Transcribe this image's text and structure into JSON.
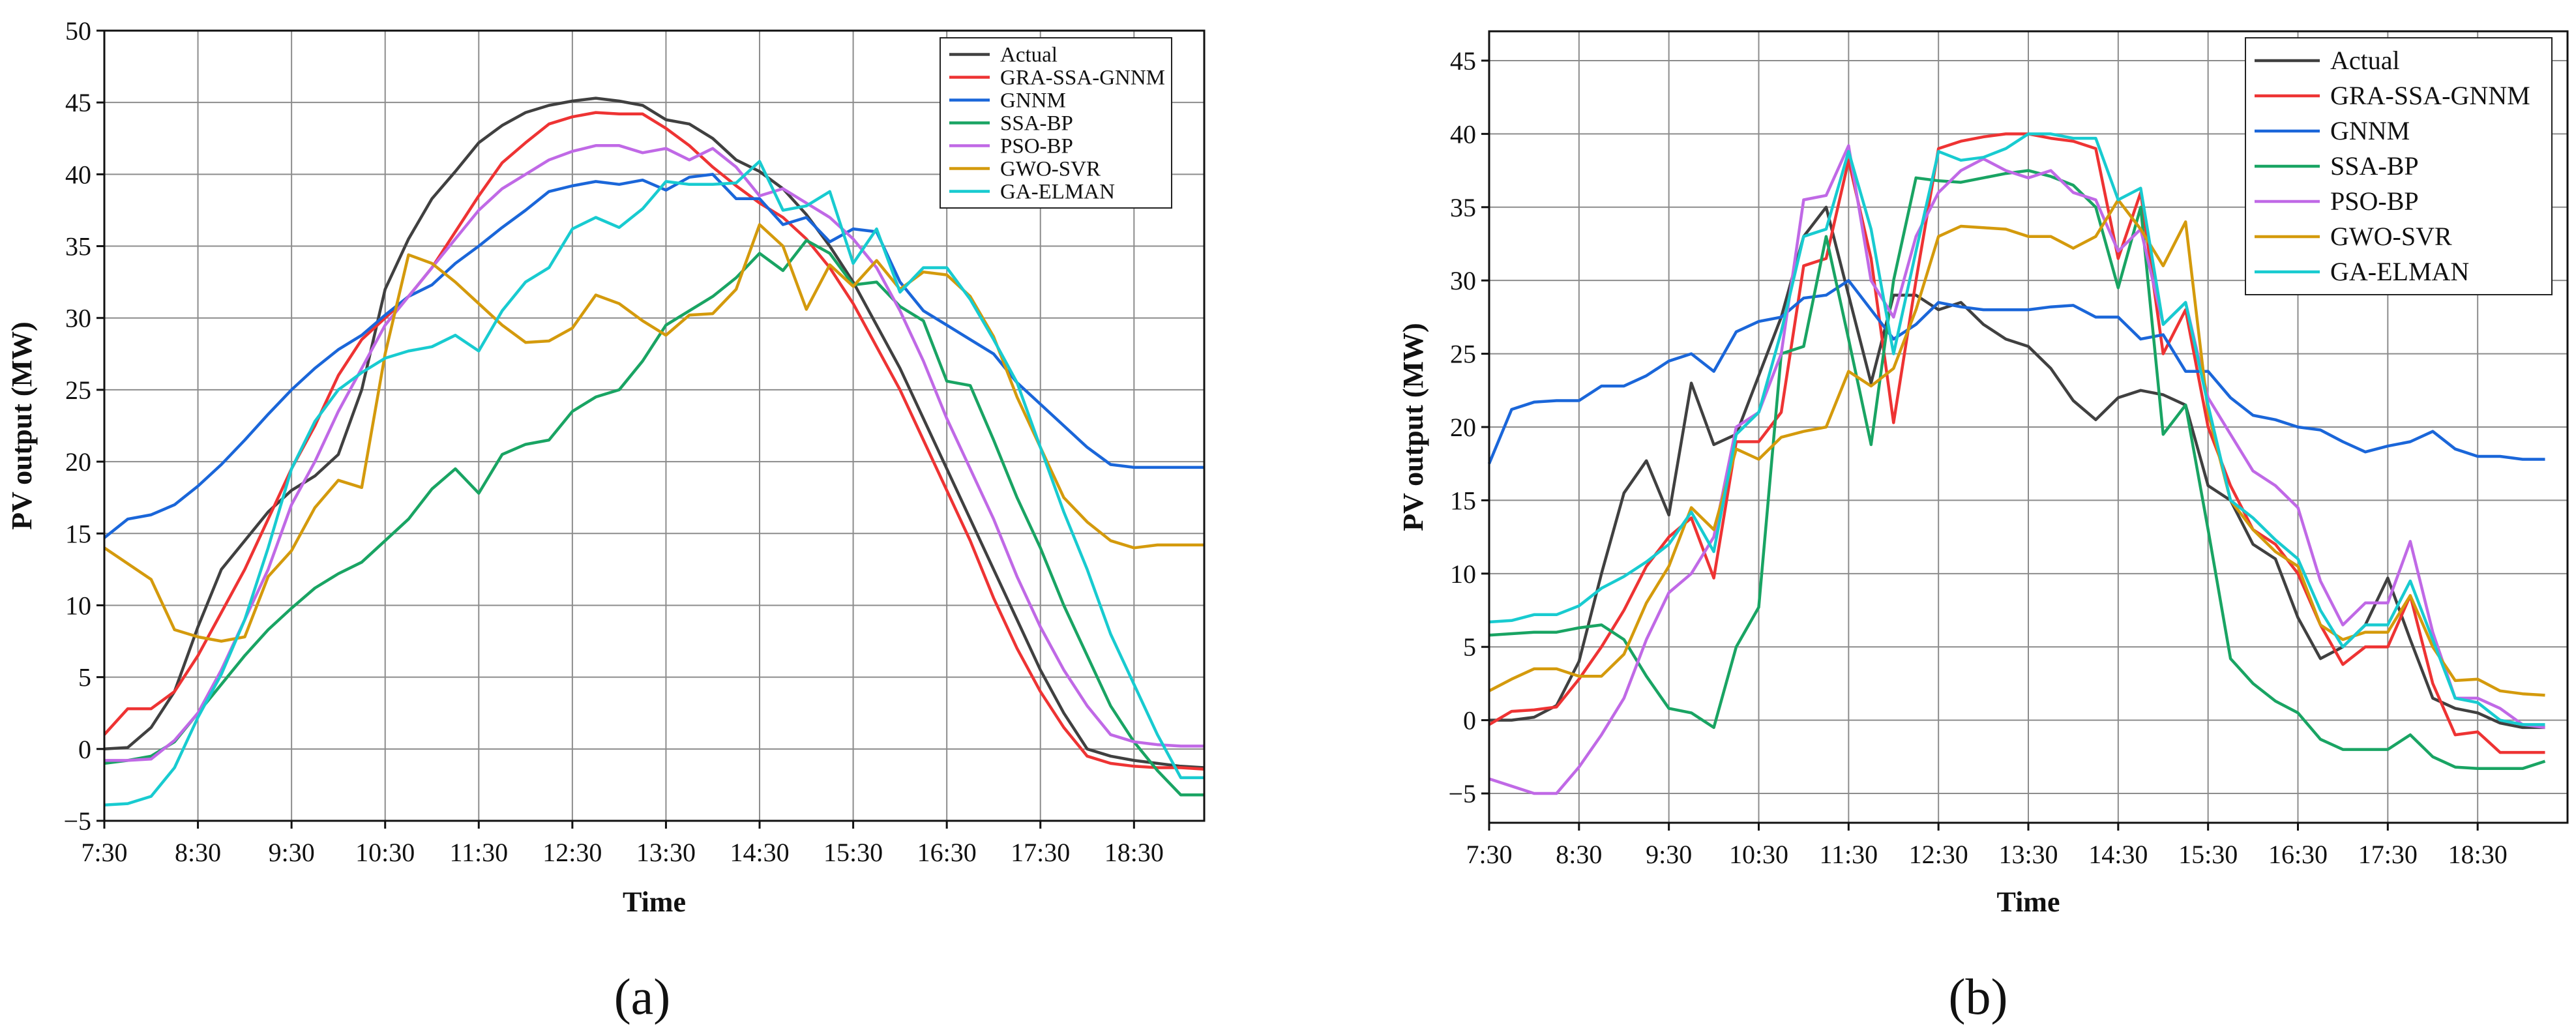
{
  "figure": {
    "caption_a": "(a)",
    "caption_b": "(b)"
  },
  "series_colors": {
    "Actual": "#404040",
    "GRA-SSA-GNNM": "#ee3333",
    "GNNM": "#1a66d9",
    "SSA-BP": "#19a463",
    "PSO-BP": "#c069e6",
    "GWO-SVR": "#d49a0c",
    "GA-ELMAN": "#18cbd0"
  },
  "chart_data": [
    {
      "type": "line",
      "panel": "a",
      "title": "",
      "xlabel": "Time",
      "ylabel": "PV output (MW)",
      "xlim": [
        0,
        47
      ],
      "ylim": [
        -5,
        50
      ],
      "yticks": [
        -5,
        0,
        5,
        10,
        15,
        20,
        25,
        30,
        35,
        40,
        45,
        50
      ],
      "xtick_labels": [
        "7:30",
        "8:30",
        "9:30",
        "10:30",
        "11:30",
        "12:30",
        "13:30",
        "14:30",
        "15:30",
        "16:30",
        "17:30",
        "18:30"
      ],
      "xtick_step": 4,
      "legend_position": "top-right",
      "series": [
        {
          "name": "Actual",
          "values": [
            0,
            0.1,
            1.5,
            4,
            8.5,
            12.5,
            14.5,
            16.5,
            18,
            19,
            20.5,
            25,
            32,
            35.5,
            38.3,
            40.2,
            42.2,
            43.4,
            44.3,
            44.8,
            45.1,
            45.3,
            45.1,
            44.8,
            43.8,
            43.5,
            42.5,
            41,
            40.2,
            39,
            37.2,
            35,
            32.5,
            29.5,
            26.5,
            23,
            19.5,
            16,
            12.5,
            9,
            5.5,
            2.5,
            0,
            -0.5,
            -0.8,
            -1,
            -1.2,
            -1.3
          ]
        },
        {
          "name": "GRA-SSA-GNNM",
          "values": [
            1,
            2.8,
            2.8,
            4,
            6.5,
            9.5,
            12.5,
            16,
            19.5,
            22.5,
            26,
            28.5,
            30,
            31.5,
            33.5,
            36,
            38.5,
            40.8,
            42.2,
            43.5,
            44,
            44.3,
            44.2,
            44.2,
            43.2,
            42,
            40.5,
            39.2,
            38,
            37,
            35.5,
            33.5,
            31,
            28,
            25,
            21.5,
            18,
            14.5,
            10.5,
            7,
            4,
            1.5,
            -0.5,
            -1,
            -1.2,
            -1.3,
            -1.3,
            -1.4
          ]
        },
        {
          "name": "GNNM",
          "values": [
            14.7,
            16,
            16.3,
            17,
            18.3,
            19.8,
            21.5,
            23.3,
            25,
            26.5,
            27.8,
            28.8,
            30.2,
            31.5,
            32.3,
            33.8,
            35,
            36.3,
            37.5,
            38.8,
            39.2,
            39.5,
            39.3,
            39.6,
            38.9,
            39.8,
            40,
            38.3,
            38.3,
            36.5,
            37,
            35.3,
            36.2,
            36,
            32.5,
            30.5,
            29.5,
            28.5,
            27.5,
            25.5,
            24,
            22.5,
            21,
            19.8,
            19.6,
            19.6,
            19.6,
            19.6
          ]
        },
        {
          "name": "SSA-BP",
          "values": [
            -1,
            -0.8,
            -0.5,
            0.5,
            2.5,
            4.5,
            6.5,
            8.3,
            9.8,
            11.2,
            12.2,
            13,
            14.5,
            16,
            18.1,
            19.5,
            17.8,
            20.5,
            21.2,
            21.5,
            23.5,
            24.5,
            25,
            27,
            29.5,
            30.5,
            31.5,
            32.8,
            34.5,
            33.3,
            35.4,
            34.5,
            32.3,
            32.5,
            30.8,
            29.8,
            25.6,
            25.3,
            21.5,
            17.5,
            14,
            10,
            6.5,
            3,
            0.5,
            -1.5,
            -3.2,
            -3.2
          ]
        },
        {
          "name": "PSO-BP",
          "values": [
            -0.8,
            -0.8,
            -0.7,
            0.6,
            2.5,
            5.5,
            9,
            12.5,
            17,
            20,
            23.5,
            26.5,
            29.5,
            31.5,
            33.5,
            35.5,
            37.5,
            39,
            40,
            41,
            41.6,
            42,
            42,
            41.5,
            41.8,
            41,
            41.8,
            40.5,
            38.5,
            39,
            38,
            37,
            35.5,
            33.5,
            30.5,
            27,
            23,
            19.5,
            16,
            12,
            8.5,
            5.5,
            3,
            1,
            0.5,
            0.3,
            0.2,
            0.2
          ]
        },
        {
          "name": "GWO-SVR",
          "values": [
            14,
            12.9,
            11.8,
            8.3,
            7.8,
            7.5,
            7.8,
            12,
            13.8,
            16.8,
            18.7,
            18.2,
            27.5,
            34.4,
            33.8,
            32.5,
            31,
            29.5,
            28.3,
            28.4,
            29.3,
            31.6,
            31,
            29.8,
            28.8,
            30.2,
            30.3,
            32,
            36.5,
            35,
            30.6,
            33.7,
            32.2,
            34,
            32,
            33.2,
            33,
            31.5,
            28.7,
            24.5,
            21,
            17.5,
            15.8,
            14.5,
            14,
            14.2,
            14.2,
            14.2
          ]
        },
        {
          "name": "GA-ELMAN",
          "values": [
            -3.9,
            -3.8,
            -3.3,
            -1.3,
            2.2,
            5.2,
            9,
            14,
            19.5,
            22.8,
            25,
            26.2,
            27.2,
            27.7,
            28,
            28.8,
            27.7,
            30.5,
            32.5,
            33.5,
            36.2,
            37,
            36.3,
            37.6,
            39.5,
            39.3,
            39.3,
            39.4,
            40.9,
            37.5,
            37.8,
            38.8,
            33.8,
            36.2,
            31.8,
            33.5,
            33.5,
            31.3,
            28.5,
            25.5,
            21,
            16.5,
            12.5,
            8,
            4.5,
            1,
            -2,
            -2
          ]
        }
      ]
    },
    {
      "type": "line",
      "panel": "b",
      "title": "",
      "xlabel": "Time",
      "ylabel": "PV output (MW)",
      "xlim": [
        0,
        48
      ],
      "ylim": [
        -7,
        47
      ],
      "yticks": [
        -5,
        0,
        5,
        10,
        15,
        20,
        25,
        30,
        35,
        40,
        45
      ],
      "xtick_labels": [
        "7:30",
        "8:30",
        "9:30",
        "10:30",
        "11:30",
        "12:30",
        "13:30",
        "14:30",
        "15:30",
        "16:30",
        "17:30",
        "18:30"
      ],
      "xtick_step": 4,
      "legend_position": "top-right",
      "series": [
        {
          "name": "Actual",
          "values": [
            0,
            0,
            0.2,
            1,
            4,
            10,
            15.5,
            17.7,
            14,
            23,
            18.8,
            19.5,
            23.5,
            27.5,
            33,
            35,
            29,
            23,
            29,
            29,
            28,
            28.5,
            27,
            26,
            25.5,
            24,
            21.8,
            20.5,
            22,
            22.5,
            22.2,
            21.5,
            16,
            15,
            12,
            11,
            7,
            4.2,
            5,
            6.5,
            9.7,
            5.5,
            1.5,
            0.8,
            0.5,
            -0.2,
            -0.5,
            -0.5
          ]
        },
        {
          "name": "GRA-SSA-GNNM",
          "values": [
            -0.3,
            0.6,
            0.7,
            0.9,
            2.8,
            5,
            7.5,
            10.5,
            12.5,
            13.8,
            9.7,
            19,
            19,
            21,
            31,
            31.5,
            38.2,
            31.5,
            20.3,
            30,
            39,
            39.5,
            39.8,
            40,
            40,
            39.7,
            39.5,
            39,
            31.5,
            36,
            25,
            28,
            20,
            16,
            13,
            12,
            10,
            6.5,
            3.8,
            5,
            5,
            8.5,
            2.5,
            -1,
            -0.8,
            -2.2,
            -2.2,
            -2.2
          ]
        },
        {
          "name": "GNNM",
          "values": [
            17.5,
            21.2,
            21.7,
            21.8,
            21.8,
            22.8,
            22.8,
            23.5,
            24.5,
            25,
            23.8,
            26.5,
            27.2,
            27.5,
            28.8,
            29,
            30,
            28,
            26,
            27,
            28.5,
            28.2,
            28,
            28,
            28,
            28.2,
            28.3,
            27.5,
            27.5,
            26,
            26.3,
            23.8,
            23.8,
            22,
            20.8,
            20.5,
            20,
            19.8,
            19,
            18.3,
            18.7,
            19,
            19.7,
            18.5,
            18,
            18,
            17.8,
            17.8
          ]
        },
        {
          "name": "SSA-BP",
          "values": [
            5.8,
            5.9,
            6,
            6,
            6.3,
            6.5,
            5.5,
            3,
            0.8,
            0.5,
            -0.5,
            5,
            7.7,
            25,
            25.5,
            33,
            26,
            18.8,
            30,
            37,
            36.8,
            36.7,
            37,
            37.3,
            37.5,
            37.1,
            36.5,
            35,
            29.5,
            35,
            19.5,
            21.5,
            13,
            4.2,
            2.5,
            1.3,
            0.5,
            -1.3,
            -2,
            -2,
            -2,
            -1,
            -2.5,
            -3.2,
            -3.3,
            -3.3,
            -3.3,
            -2.8
          ]
        },
        {
          "name": "PSO-BP",
          "values": [
            -4,
            -4.5,
            -5,
            -5,
            -3.2,
            -1,
            1.5,
            5.5,
            8.7,
            10,
            12.5,
            20,
            21,
            25,
            35.5,
            35.8,
            39.2,
            30,
            27.5,
            33,
            36,
            37.5,
            38.3,
            37.5,
            37,
            37.5,
            36,
            35.5,
            32,
            33.5,
            27,
            28.5,
            22,
            19.5,
            17,
            16,
            14.5,
            9.5,
            6.5,
            8,
            8,
            12.2,
            6,
            1.5,
            1.5,
            0.8,
            -0.3,
            -0.5
          ]
        },
        {
          "name": "GWO-SVR",
          "values": [
            2,
            2.8,
            3.5,
            3.5,
            3,
            3,
            4.5,
            8,
            10.5,
            14.5,
            13,
            18.5,
            17.8,
            19.3,
            19.7,
            20,
            23.8,
            22.8,
            24,
            28,
            33,
            33.7,
            33.6,
            33.5,
            33,
            33,
            32.2,
            33,
            35.5,
            33.5,
            31,
            34,
            21,
            15,
            13,
            11.5,
            10.5,
            6.5,
            5.5,
            6,
            6,
            8.5,
            5,
            2.7,
            2.8,
            2,
            1.8,
            1.7
          ]
        },
        {
          "name": "GA-ELMAN",
          "values": [
            6.7,
            6.8,
            7.2,
            7.2,
            7.8,
            9,
            9.8,
            10.8,
            12,
            14.2,
            11.5,
            19.5,
            21,
            26.5,
            33,
            33.5,
            38.8,
            33.5,
            25,
            32,
            38.8,
            38.2,
            38.4,
            39,
            40,
            40,
            39.7,
            39.7,
            35.5,
            36.3,
            27,
            28.5,
            21.5,
            15,
            13.8,
            12.3,
            11,
            7.5,
            5,
            6.5,
            6.5,
            9.5,
            5.5,
            1.5,
            1.2,
            0,
            -0.3,
            -0.3
          ]
        }
      ]
    }
  ]
}
